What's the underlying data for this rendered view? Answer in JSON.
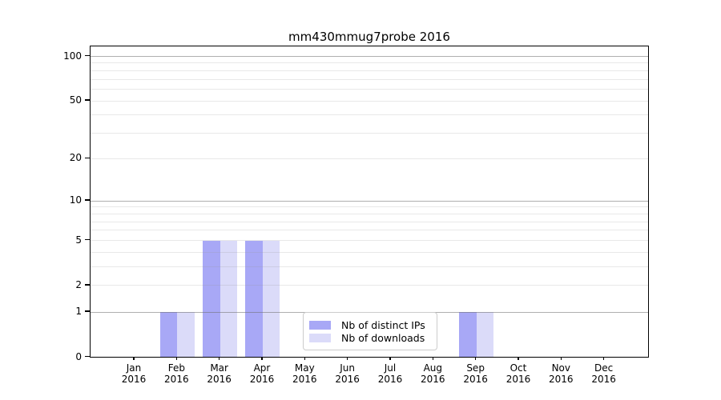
{
  "chart_data": {
    "type": "bar",
    "title": "mm430mmug7probe 2016",
    "x_categories": [
      {
        "month": "Jan",
        "year": "2016"
      },
      {
        "month": "Feb",
        "year": "2016"
      },
      {
        "month": "Mar",
        "year": "2016"
      },
      {
        "month": "Apr",
        "year": "2016"
      },
      {
        "month": "May",
        "year": "2016"
      },
      {
        "month": "Jun",
        "year": "2016"
      },
      {
        "month": "Jul",
        "year": "2016"
      },
      {
        "month": "Aug",
        "year": "2016"
      },
      {
        "month": "Sep",
        "year": "2016"
      },
      {
        "month": "Oct",
        "year": "2016"
      },
      {
        "month": "Nov",
        "year": "2016"
      },
      {
        "month": "Dec",
        "year": "2016"
      }
    ],
    "series": [
      {
        "name": "Nb of distinct IPs",
        "color": "#a8a8f6",
        "values": [
          0,
          1,
          5,
          5,
          0,
          0,
          0,
          0,
          1,
          0,
          0,
          0
        ]
      },
      {
        "name": "Nb of downloads",
        "color": "#dbdbf9",
        "values": [
          0,
          1,
          5,
          5,
          0,
          0,
          0,
          0,
          1,
          0,
          0,
          0
        ]
      }
    ],
    "y_axis": {
      "scale": "log1p",
      "ticks": [
        0,
        1,
        2,
        5,
        10,
        20,
        50,
        100
      ],
      "range": [
        0,
        115
      ]
    },
    "grid": {
      "major": [
        1,
        10,
        100
      ],
      "minor": [
        2,
        3,
        4,
        5,
        6,
        7,
        8,
        9,
        20,
        30,
        40,
        50,
        60,
        70,
        80,
        90
      ]
    },
    "legend_position": "lower-center-inside",
    "colors": {
      "axis": "#000000",
      "major_grid": "#b0b0b0",
      "minor_grid": "#e8e8e8",
      "background": "#ffffff"
    }
  }
}
